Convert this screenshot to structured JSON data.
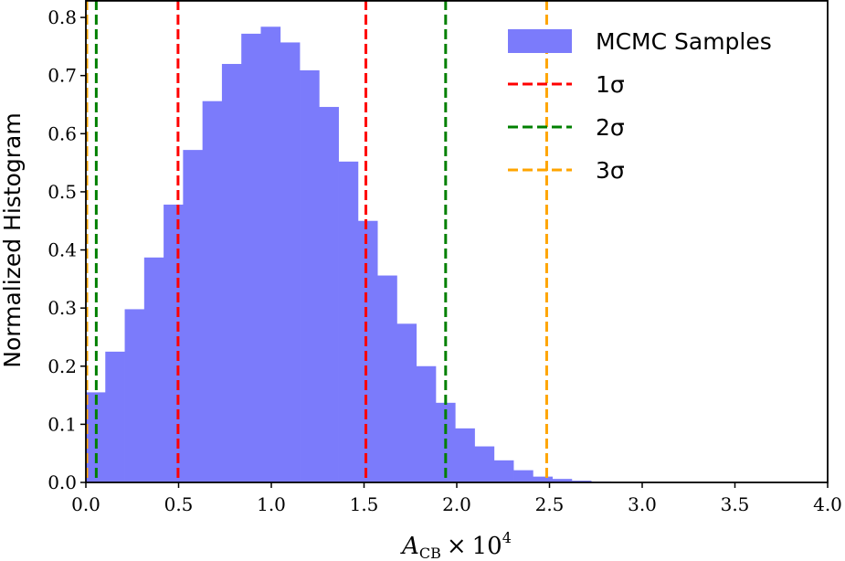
{
  "chart_data": {
    "type": "bar",
    "title": "",
    "xlabel": {
      "base": "A",
      "subscript": "CB",
      "times": "×",
      "mantissa": "10",
      "exponent": "4"
    },
    "ylabel": "Normalized Histogram",
    "xlim": [
      0,
      4.0
    ],
    "ylim": [
      0,
      0.83
    ],
    "xticks": [
      0.0,
      0.5,
      1.0,
      1.5,
      2.0,
      2.5,
      3.0,
      3.5,
      4.0
    ],
    "xtick_labels": [
      "0.0",
      "0.5",
      "1.0",
      "1.5",
      "2.0",
      "2.5",
      "3.0",
      "3.5",
      "4.0"
    ],
    "yticks": [
      0.0,
      0.1,
      0.2,
      0.3,
      0.4,
      0.5,
      0.6,
      0.7,
      0.8
    ],
    "ytick_labels": [
      "0.0",
      "0.1",
      "0.2",
      "0.3",
      "0.4",
      "0.5",
      "0.6",
      "0.7",
      "0.8"
    ],
    "grid": false,
    "bin_width": 0.1048,
    "bin_start": 0.0,
    "series": [
      {
        "name": "MCMC Samples",
        "color": "#7b7bfb",
        "values": [
          0.155,
          0.225,
          0.298,
          0.387,
          0.478,
          0.572,
          0.656,
          0.72,
          0.772,
          0.784,
          0.757,
          0.709,
          0.646,
          0.552,
          0.45,
          0.356,
          0.273,
          0.2,
          0.137,
          0.093,
          0.062,
          0.038,
          0.021,
          0.01,
          0.006,
          0.003,
          0.0015,
          0.0005
        ]
      }
    ],
    "vlines": [
      {
        "name": "1σ",
        "color": "#ff0000",
        "positions": [
          0.497,
          1.51
        ]
      },
      {
        "name": "2σ",
        "color": "#008000",
        "positions": [
          0.056,
          1.94
        ]
      },
      {
        "name": "3σ",
        "color": "#ffa500",
        "positions": [
          0.0,
          2.485
        ]
      }
    ],
    "legend": {
      "placement": "top-right",
      "entries": [
        {
          "label": "MCMC Samples",
          "kind": "patch",
          "color": "#7b7bfb"
        },
        {
          "label": "1σ",
          "kind": "dashed",
          "color": "#ff0000"
        },
        {
          "label": "2σ",
          "kind": "dashed",
          "color": "#008000"
        },
        {
          "label": "3σ",
          "kind": "dashed",
          "color": "#ffa500"
        }
      ]
    }
  }
}
